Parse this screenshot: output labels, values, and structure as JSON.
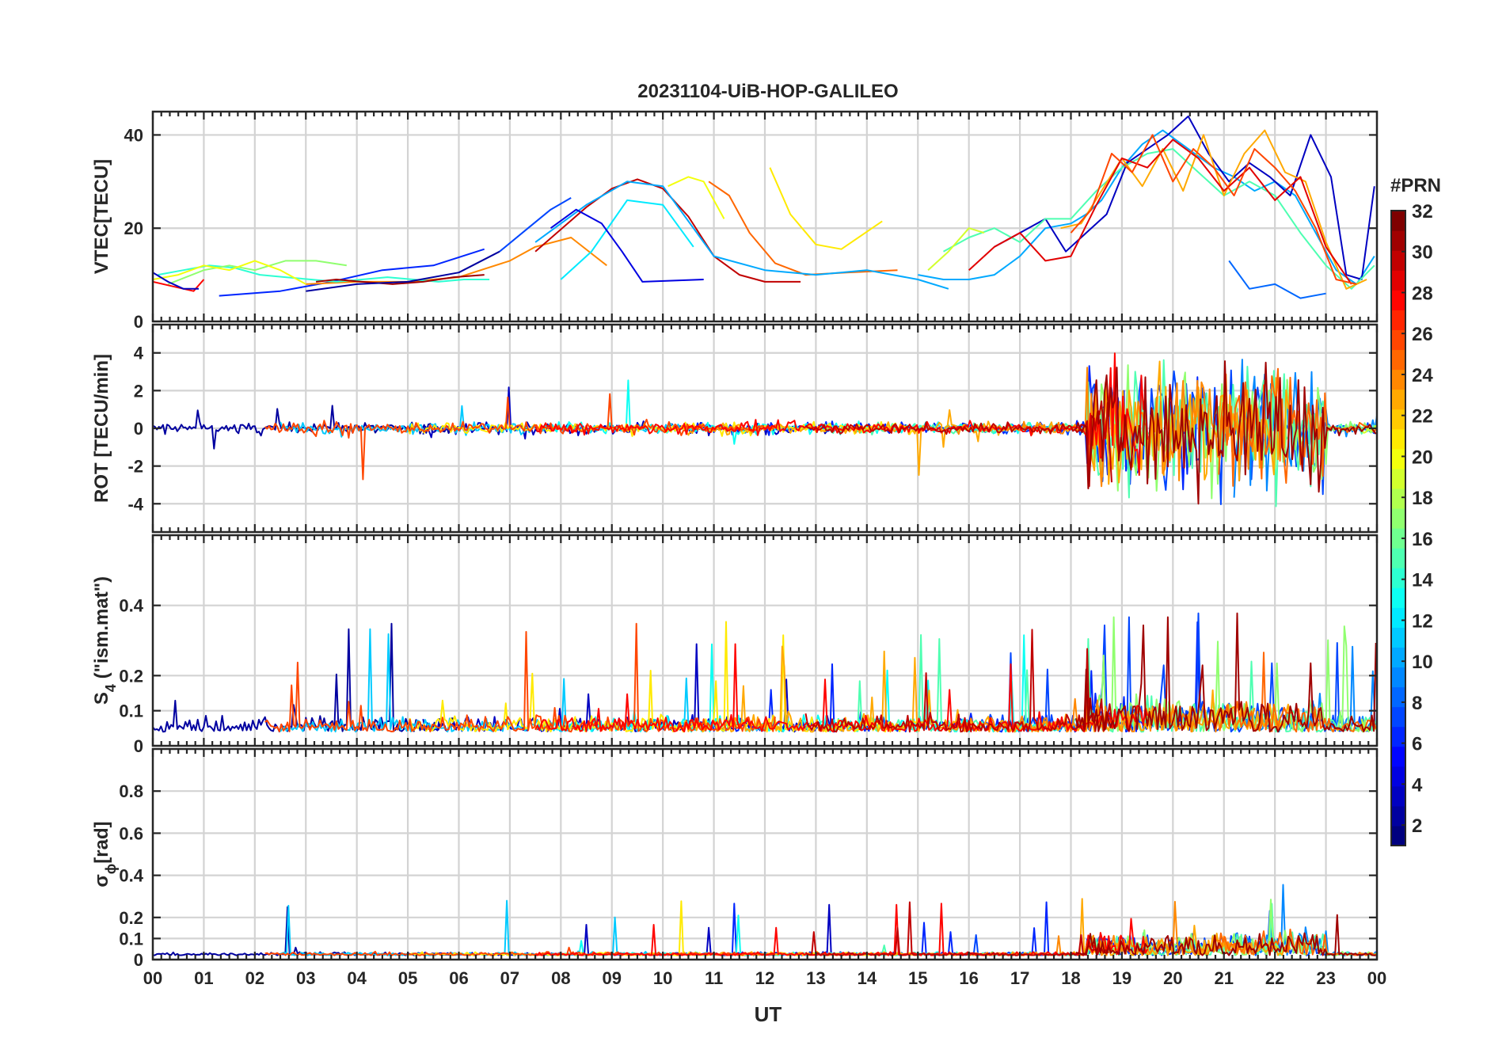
{
  "chart_data": {
    "type": "line",
    "title": "20231104-UiB-HOP-GALILEO",
    "xlabel": "UT",
    "xlim": [
      0,
      24
    ],
    "x_ticks": [
      "00",
      "01",
      "02",
      "03",
      "04",
      "05",
      "06",
      "07",
      "08",
      "09",
      "10",
      "11",
      "12",
      "13",
      "14",
      "15",
      "16",
      "17",
      "18",
      "19",
      "20",
      "21",
      "22",
      "23",
      "00"
    ],
    "colorbar": {
      "label": "#PRN",
      "range": [
        1,
        32
      ],
      "ticks": [
        "2",
        "4",
        "6",
        "8",
        "10",
        "12",
        "14",
        "16",
        "18",
        "20",
        "22",
        "24",
        "26",
        "28",
        "30",
        "32"
      ],
      "colormap": "jet",
      "colors": [
        "#00007f",
        "#0000ff",
        "#007fff",
        "#00ffff",
        "#7fff7f",
        "#ffff00",
        "#ff7f00",
        "#ff0000",
        "#7f0000"
      ]
    },
    "panels": [
      {
        "id": "vtec",
        "ylabel": "VTEC[TECU]",
        "ylim": [
          0,
          45
        ],
        "yticks": [
          "0",
          "20",
          "40"
        ],
        "series": [
          {
            "prn": 6,
            "x": [
              1.3,
              2.5,
              3.5,
              4.5,
              5.5,
              6.5
            ],
            "y": [
              5.5,
              6.5,
              8.5,
              11,
              12,
              15.5
            ]
          },
          {
            "prn": 24,
            "x": [
              3.0,
              4.0,
              5.0,
              6.0,
              7.0,
              7.5,
              8.2,
              8.9
            ],
            "y": [
              8,
              8.5,
              8.5,
              9.5,
              13,
              16,
              18,
              12
            ]
          },
          {
            "prn": 7,
            "x": [
              6.8,
              7.3,
              7.8,
              8.2
            ],
            "y": [
              15,
              19.5,
              24,
              26.5
            ]
          },
          {
            "prn": 30,
            "x": [
              7.5,
              8.5,
              9.0,
              9.5,
              10.0,
              10.5,
              11.0,
              11.5,
              12.0,
              12.7
            ],
            "y": [
              15,
              24.5,
              28.5,
              30.5,
              28.5,
              22.5,
              14,
              10,
              8.5,
              8.5
            ]
          },
          {
            "prn": 20,
            "x": [
              10.1,
              10.5,
              10.8,
              11.0,
              11.2
            ],
            "y": [
              29,
              31,
              30,
              26,
              22
            ]
          },
          {
            "prn": 25,
            "x": [
              10.9,
              11.3,
              11.7,
              12.2,
              12.8,
              13.6,
              14.6
            ],
            "y": [
              30,
              27,
              19,
              12.5,
              10,
              10.5,
              11
            ]
          },
          {
            "prn": 21,
            "x": [
              12.1,
              12.5,
              13.0,
              13.5,
              14.3
            ],
            "y": [
              33,
              23,
              16.5,
              15.5,
              21.5
            ]
          },
          {
            "prn": 12,
            "x": [
              8.0,
              8.6,
              9.3,
              10.0,
              10.6
            ],
            "y": [
              9,
              15,
              26,
              25,
              16
            ]
          },
          {
            "prn": 10,
            "x": [
              7.5,
              8.5,
              9.3,
              10.0,
              11.0,
              12.0,
              13.0,
              14.0,
              15.0,
              15.6
            ],
            "y": [
              17,
              25,
              30,
              29,
              14,
              11,
              10,
              11,
              9,
              7
            ]
          },
          {
            "prn": 4,
            "x": [
              7.8,
              8.3,
              8.8,
              9.2,
              9.6,
              10.8
            ],
            "y": [
              20,
              24,
              21,
              15,
              8.5,
              9
            ]
          },
          {
            "prn": 14,
            "x": [
              0.1,
              0.6,
              1.1,
              1.6,
              2.1,
              2.6,
              3.1,
              3.6,
              4.1,
              4.6,
              5.1,
              5.6,
              6.1,
              6.6
            ],
            "y": [
              10,
              11,
              12,
              11.5,
              10,
              9.5,
              9,
              8.5,
              9,
              9.5,
              9,
              8.5,
              9,
              9
            ]
          },
          {
            "prn": 17,
            "x": [
              0.3,
              1.0,
              1.5,
              2.0,
              2.6,
              3.2,
              3.8
            ],
            "y": [
              8,
              11,
              12,
              11,
              13,
              13,
              12
            ]
          },
          {
            "prn": 20,
            "x": [
              0.0,
              0.5,
              1.0,
              1.5,
              2.0,
              2.5,
              3.0
            ],
            "y": [
              9,
              10,
              12,
              11,
              13,
              11,
              8
            ]
          },
          {
            "prn": 28,
            "x": [
              0.0,
              0.4,
              0.8,
              1.0
            ],
            "y": [
              8.5,
              7.5,
              6.5,
              9
            ]
          },
          {
            "prn": 3,
            "x": [
              0.0,
              0.3,
              0.6,
              0.9
            ],
            "y": [
              10.5,
              8.5,
              7,
              7
            ]
          },
          {
            "prn": 31,
            "x": [
              3.2,
              3.6,
              4.1,
              4.7,
              5.3,
              5.9,
              6.5
            ],
            "y": [
              8.5,
              9,
              8.5,
              8,
              8.5,
              9.5,
              10
            ]
          },
          {
            "prn": 2,
            "x": [
              3.0,
              4.0,
              5.0,
              6.0,
              6.8
            ],
            "y": [
              6.5,
              8,
              8.5,
              10.5,
              15
            ]
          },
          {
            "prn": 10,
            "x": [
              15.0,
              15.5,
              16.0,
              16.5,
              17.0,
              17.5,
              18.0,
              18.3,
              18.6,
              19.0,
              19.4,
              19.8,
              20.3,
              20.8,
              21.2,
              21.6,
              22.0,
              22.4,
              22.8,
              23.2,
              23.6,
              23.95
            ],
            "y": [
              10,
              9,
              9,
              10,
              14,
              20,
              21,
              23,
              26,
              33,
              38,
              41,
              37,
              33,
              31,
              28,
              30,
              27,
              19,
              11,
              8,
              14
            ]
          },
          {
            "prn": 3,
            "x": [
              16.5,
              17.0,
              17.5,
              17.9,
              18.3,
              18.7,
              19.1,
              19.5,
              19.9,
              20.3,
              20.7,
              21.1,
              21.5,
              21.9,
              22.3,
              22.7,
              23.1,
              23.4,
              23.7,
              23.95
            ],
            "y": [
              16,
              19,
              22,
              15,
              19,
              23,
              34,
              37,
              40,
              44,
              36,
              30,
              34,
              31,
              27,
              40,
              31,
              10,
              9,
              29
            ]
          },
          {
            "prn": 8,
            "x": [
              21.1,
              21.5,
              22.0,
              22.5,
              23.0
            ],
            "y": [
              13,
              7,
              8,
              5,
              6
            ]
          },
          {
            "prn": 15,
            "x": [
              15.5,
              16.0,
              16.5,
              17.0,
              17.5,
              18.0,
              18.5,
              19.0,
              19.5,
              20.0,
              20.5,
              21.0,
              21.5,
              22.0,
              22.5,
              23.0,
              23.5,
              23.95
            ],
            "y": [
              15,
              18,
              20,
              17,
              22,
              22,
              28,
              33,
              36,
              37,
              32,
              27,
              30,
              27,
              19,
              12,
              7,
              12
            ]
          },
          {
            "prn": 19,
            "x": [
              15.2,
              15.6,
              16.0,
              16.3
            ],
            "y": [
              11,
              15,
              20,
              19
            ]
          },
          {
            "prn": 23,
            "x": [
              17.8,
              18.2,
              18.6,
              19.0,
              19.4,
              19.8,
              20.2,
              20.6,
              21.0,
              21.4,
              21.8,
              22.2,
              22.6,
              23.0,
              23.4,
              23.8
            ],
            "y": [
              20,
              21,
              28,
              35,
              29,
              37,
              28,
              40,
              27,
              36,
              41,
              32,
              30,
              17,
              7,
              9
            ]
          },
          {
            "prn": 29,
            "x": [
              16.0,
              16.5,
              17.0,
              17.5,
              18.0,
              18.5,
              19.0,
              19.5,
              20.0,
              20.5,
              21.0,
              21.5,
              22.0,
              22.5,
              23.0,
              23.5
            ],
            "y": [
              11,
              16,
              19,
              13,
              14,
              25,
              35,
              33,
              39,
              35,
              28,
              33,
              26,
              31,
              16,
              8
            ]
          },
          {
            "prn": 26,
            "x": [
              18.0,
              18.4,
              18.8,
              19.2,
              19.6,
              20.0,
              20.4,
              20.8,
              21.2,
              21.6,
              22.0,
              22.4,
              22.8,
              23.2,
              23.6
            ],
            "y": [
              19,
              24,
              36,
              32,
              40,
              30,
              37,
              33,
              27,
              37,
              33,
              28,
              20,
              9,
              8
            ]
          }
        ]
      },
      {
        "id": "rot",
        "ylabel": "ROT [TECU/min]",
        "ylim": [
          -5.5,
          5.5
        ],
        "yticks": [
          "-4",
          "-2",
          "0",
          "2",
          "4"
        ]
      },
      {
        "id": "s4",
        "ylabel": "S4 (\"ism.mat\")",
        "ylabel_main": "S",
        "ylabel_sub": "4",
        "ylabel_rest": " (\"ism.mat\")",
        "ylim": [
          0,
          0.6
        ],
        "yticks": [
          "0",
          "0.1",
          "0.2",
          "0.4"
        ]
      },
      {
        "id": "sigma_phi",
        "ylabel": "σφ[rad]",
        "ylabel_main": "σ",
        "ylabel_sub": "ϕ",
        "ylabel_rest": "[rad]",
        "ylim": [
          0,
          1.0
        ],
        "yticks": [
          "0",
          "0.1",
          "0.2",
          "0.4",
          "0.6",
          "0.8"
        ]
      }
    ]
  }
}
